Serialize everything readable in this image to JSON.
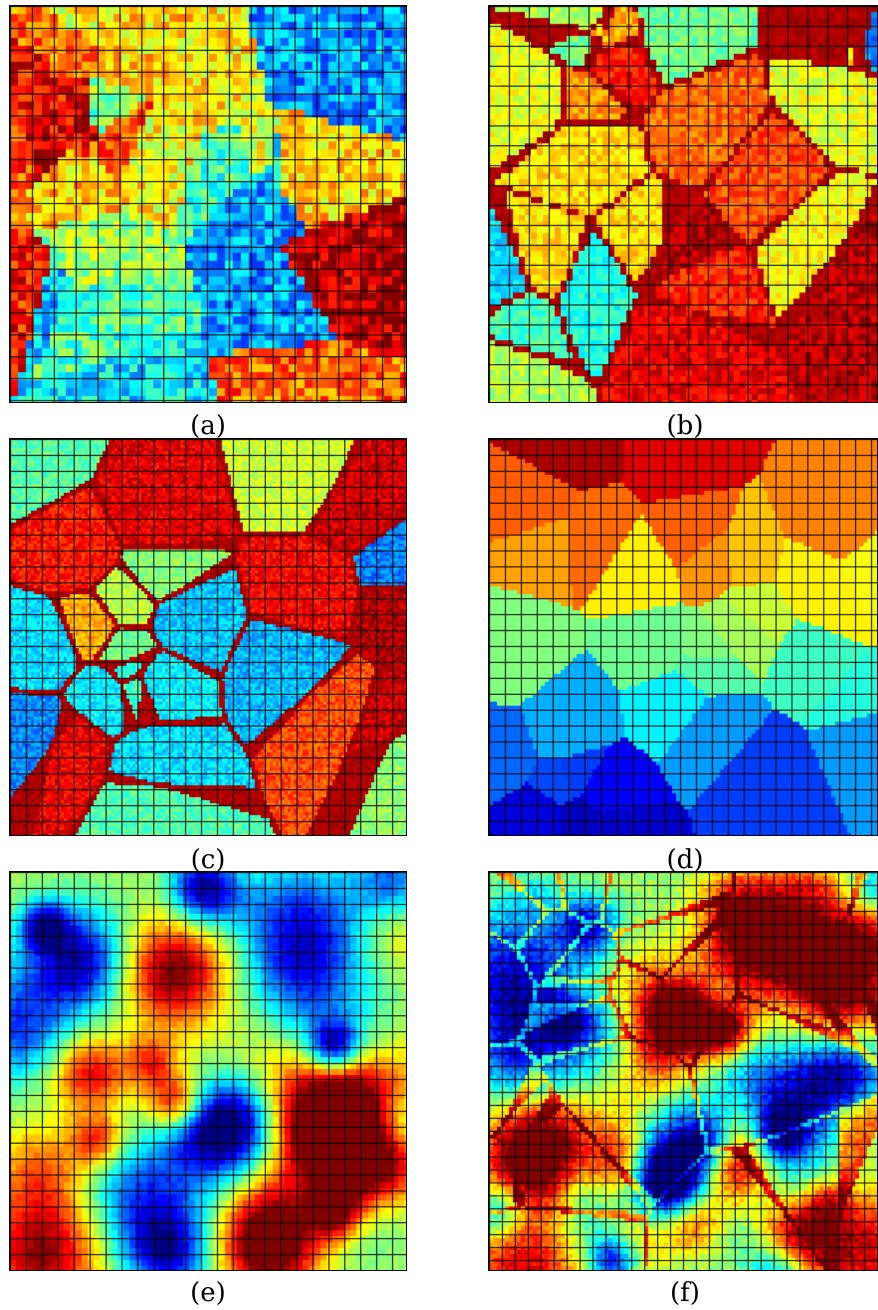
{
  "figure": {
    "panels": [
      {
        "id": "a",
        "label": "(a)",
        "style": "orientation-coarse",
        "seed": 11
      },
      {
        "id": "b",
        "label": "(b)",
        "style": "orientation-medium",
        "seed": 23
      },
      {
        "id": "c",
        "label": "(c)",
        "style": "orientation-fine",
        "seed": 37
      },
      {
        "id": "d",
        "label": "(d)",
        "style": "banded-grains",
        "seed": 41
      },
      {
        "id": "e",
        "label": "(e)",
        "style": "smooth-field",
        "seed": 53
      },
      {
        "id": "f",
        "label": "(f)",
        "style": "smooth-field-fine",
        "seed": 67
      }
    ],
    "colormap": "jet",
    "mesh_overlay": true,
    "colors": {
      "mesh_line": "#000000",
      "background": "#ffffff"
    }
  }
}
